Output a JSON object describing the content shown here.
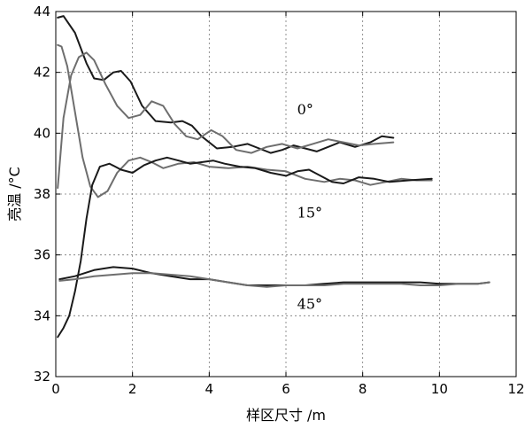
{
  "chart_data": {
    "type": "line",
    "xlabel": "样区尺寸 /m",
    "ylabel": "亮温 /°C",
    "xlim": [
      0,
      12
    ],
    "ylim": [
      32,
      44
    ],
    "xticks": [
      0,
      2,
      4,
      6,
      8,
      10,
      12
    ],
    "yticks": [
      32,
      34,
      36,
      38,
      40,
      42,
      44
    ],
    "grid": true,
    "annotations": [
      {
        "text": "0°",
        "x": 6.2,
        "y": 40.8
      },
      {
        "text": "15°",
        "x": 6.2,
        "y": 37.4
      },
      {
        "text": "45°",
        "x": 6.2,
        "y": 34.4
      }
    ],
    "series": [
      {
        "color": "#1a1a1a",
        "points": [
          [
            0.05,
            43.8
          ],
          [
            0.2,
            43.85
          ],
          [
            0.5,
            43.3
          ],
          [
            0.8,
            42.3
          ],
          [
            1.0,
            41.8
          ],
          [
            1.25,
            41.75
          ],
          [
            1.5,
            42.0
          ],
          [
            1.7,
            42.05
          ],
          [
            1.95,
            41.7
          ],
          [
            2.25,
            40.9
          ],
          [
            2.6,
            40.4
          ],
          [
            3.0,
            40.35
          ],
          [
            3.3,
            40.4
          ],
          [
            3.55,
            40.25
          ],
          [
            3.8,
            39.9
          ],
          [
            4.2,
            39.5
          ],
          [
            4.6,
            39.55
          ],
          [
            5.0,
            39.65
          ],
          [
            5.3,
            39.5
          ],
          [
            5.6,
            39.35
          ],
          [
            5.9,
            39.45
          ],
          [
            6.2,
            39.6
          ],
          [
            6.5,
            39.5
          ],
          [
            6.8,
            39.4
          ],
          [
            7.1,
            39.55
          ],
          [
            7.4,
            39.7
          ],
          [
            7.8,
            39.55
          ],
          [
            8.2,
            39.7
          ],
          [
            8.5,
            39.9
          ],
          [
            8.8,
            39.85
          ]
        ]
      },
      {
        "color": "#6e6e6e",
        "points": [
          [
            0.05,
            42.9
          ],
          [
            0.15,
            42.85
          ],
          [
            0.3,
            42.2
          ],
          [
            0.5,
            40.7
          ],
          [
            0.7,
            39.2
          ],
          [
            0.9,
            38.25
          ],
          [
            1.1,
            37.9
          ],
          [
            1.35,
            38.1
          ],
          [
            1.6,
            38.7
          ],
          [
            1.9,
            39.1
          ],
          [
            2.2,
            39.2
          ],
          [
            2.5,
            39.05
          ],
          [
            2.8,
            38.85
          ],
          [
            3.2,
            39.0
          ],
          [
            3.6,
            39.05
          ],
          [
            4.0,
            38.9
          ],
          [
            4.5,
            38.85
          ],
          [
            5.0,
            38.9
          ],
          [
            5.5,
            38.8
          ],
          [
            6.0,
            38.75
          ],
          [
            6.5,
            38.5
          ],
          [
            7.0,
            38.4
          ],
          [
            7.4,
            38.5
          ],
          [
            7.8,
            38.45
          ],
          [
            8.2,
            38.3
          ],
          [
            8.6,
            38.4
          ],
          [
            9.0,
            38.5
          ],
          [
            9.4,
            38.45
          ],
          [
            9.8,
            38.45
          ]
        ]
      },
      {
        "color": "#6e6e6e",
        "points": [
          [
            0.05,
            38.2
          ],
          [
            0.2,
            40.5
          ],
          [
            0.4,
            41.9
          ],
          [
            0.6,
            42.5
          ],
          [
            0.8,
            42.65
          ],
          [
            1.0,
            42.4
          ],
          [
            1.3,
            41.6
          ],
          [
            1.6,
            40.9
          ],
          [
            1.9,
            40.5
          ],
          [
            2.2,
            40.6
          ],
          [
            2.5,
            41.05
          ],
          [
            2.8,
            40.9
          ],
          [
            3.1,
            40.3
          ],
          [
            3.4,
            39.9
          ],
          [
            3.7,
            39.8
          ],
          [
            4.05,
            40.1
          ],
          [
            4.35,
            39.9
          ],
          [
            4.7,
            39.45
          ],
          [
            5.1,
            39.35
          ],
          [
            5.5,
            39.55
          ],
          [
            5.9,
            39.65
          ],
          [
            6.3,
            39.5
          ],
          [
            6.7,
            39.65
          ],
          [
            7.1,
            39.8
          ],
          [
            7.5,
            39.7
          ],
          [
            7.9,
            39.6
          ],
          [
            8.3,
            39.65
          ],
          [
            8.8,
            39.7
          ]
        ]
      },
      {
        "color": "#1a1a1a",
        "points": [
          [
            0.05,
            33.3
          ],
          [
            0.2,
            33.6
          ],
          [
            0.35,
            34.0
          ],
          [
            0.5,
            34.8
          ],
          [
            0.65,
            35.8
          ],
          [
            0.8,
            37.2
          ],
          [
            0.95,
            38.3
          ],
          [
            1.15,
            38.9
          ],
          [
            1.4,
            39.0
          ],
          [
            1.7,
            38.8
          ],
          [
            2.0,
            38.7
          ],
          [
            2.3,
            38.95
          ],
          [
            2.6,
            39.1
          ],
          [
            2.9,
            39.2
          ],
          [
            3.2,
            39.1
          ],
          [
            3.5,
            39.0
          ],
          [
            3.8,
            39.05
          ],
          [
            4.1,
            39.1
          ],
          [
            4.4,
            39.0
          ],
          [
            4.8,
            38.9
          ],
          [
            5.2,
            38.85
          ],
          [
            5.6,
            38.7
          ],
          [
            6.0,
            38.6
          ],
          [
            6.3,
            38.75
          ],
          [
            6.6,
            38.8
          ],
          [
            6.9,
            38.6
          ],
          [
            7.2,
            38.4
          ],
          [
            7.5,
            38.35
          ],
          [
            7.9,
            38.55
          ],
          [
            8.3,
            38.5
          ],
          [
            8.7,
            38.4
          ],
          [
            9.2,
            38.45
          ],
          [
            9.8,
            38.5
          ]
        ]
      },
      {
        "color": "#1a1a1a",
        "points": [
          [
            0.1,
            35.2
          ],
          [
            0.5,
            35.3
          ],
          [
            1.0,
            35.5
          ],
          [
            1.5,
            35.6
          ],
          [
            2.0,
            35.55
          ],
          [
            2.5,
            35.4
          ],
          [
            3.0,
            35.3
          ],
          [
            3.5,
            35.2
          ],
          [
            4.0,
            35.2
          ],
          [
            4.5,
            35.1
          ],
          [
            5.0,
            35.0
          ],
          [
            5.5,
            35.0
          ],
          [
            6.0,
            35.0
          ],
          [
            6.5,
            35.0
          ],
          [
            7.0,
            35.05
          ],
          [
            7.5,
            35.1
          ],
          [
            8.0,
            35.1
          ],
          [
            8.5,
            35.1
          ],
          [
            9.0,
            35.1
          ],
          [
            9.5,
            35.1
          ],
          [
            10.0,
            35.05
          ],
          [
            10.5,
            35.05
          ],
          [
            11.0,
            35.05
          ],
          [
            11.3,
            35.1
          ]
        ]
      },
      {
        "color": "#6e6e6e",
        "points": [
          [
            0.1,
            35.15
          ],
          [
            0.5,
            35.2
          ],
          [
            1.0,
            35.3
          ],
          [
            1.5,
            35.35
          ],
          [
            2.0,
            35.4
          ],
          [
            2.5,
            35.4
          ],
          [
            3.0,
            35.35
          ],
          [
            3.5,
            35.3
          ],
          [
            4.0,
            35.2
          ],
          [
            4.5,
            35.1
          ],
          [
            5.0,
            35.0
          ],
          [
            5.5,
            34.95
          ],
          [
            6.0,
            35.0
          ],
          [
            6.5,
            35.0
          ],
          [
            7.0,
            35.0
          ],
          [
            7.5,
            35.05
          ],
          [
            8.0,
            35.05
          ],
          [
            8.5,
            35.05
          ],
          [
            9.0,
            35.05
          ],
          [
            9.5,
            35.0
          ],
          [
            10.0,
            35.0
          ],
          [
            10.5,
            35.05
          ],
          [
            11.0,
            35.05
          ],
          [
            11.3,
            35.1
          ]
        ]
      }
    ]
  }
}
